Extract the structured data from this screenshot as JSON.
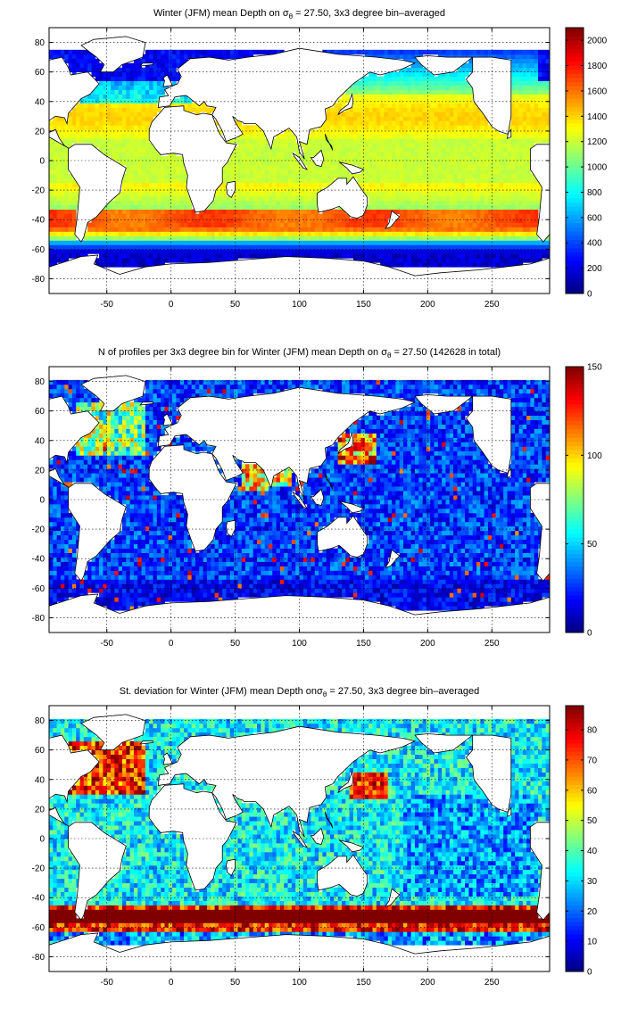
{
  "chart_data": [
    {
      "type": "heatmap",
      "title": "Winter (JFM) mean Depth on σθ = 27.50, 3x3 degree bin–averaged",
      "title_parts": {
        "pre": "Winter (JFM) mean Depth on σ",
        "sub": "θ",
        "post": " = 27.50, 3x3 degree bin–averaged"
      },
      "xlim": [
        -95,
        295
      ],
      "ylim": [
        -90,
        90
      ],
      "xticks": [
        -50,
        0,
        50,
        100,
        150,
        200,
        250
      ],
      "yticks": [
        -80,
        -60,
        -40,
        -20,
        0,
        20,
        40,
        60,
        80
      ],
      "grid": true,
      "bin_deg": 3,
      "colorbar": {
        "min": 0,
        "max": 2100,
        "ticks": [
          0,
          200,
          400,
          600,
          800,
          1000,
          1200,
          1400,
          1600,
          1800,
          2000
        ]
      },
      "field_summary": {
        "tropics": 1200,
        "subtropical_gyres": 1350,
        "southern_band_-40": 1650,
        "antarctic_circumpolar_-60": 150,
        "north_atlantic_subpolar": 400
      }
    },
    {
      "type": "heatmap",
      "title": "N of profiles per 3x3 degree bin for Winter (JFM) mean Depth on σθ = 27.50 (142628 in total)",
      "title_parts": {
        "pre": "N of profiles per 3x3 degree bin for Winter (JFM) mean Depth on σ",
        "sub": "θ",
        "post": " = 27.50 (142628 in total)"
      },
      "total_profiles": 142628,
      "xlim": [
        -95,
        295
      ],
      "ylim": [
        -90,
        90
      ],
      "xticks": [
        -50,
        0,
        50,
        100,
        150,
        200,
        250
      ],
      "yticks": [
        -80,
        -60,
        -40,
        -20,
        0,
        20,
        40,
        60,
        80
      ],
      "grid": true,
      "bin_deg": 3,
      "colorbar": {
        "min": 0,
        "max": 150,
        "ticks": [
          0,
          50,
          100,
          150
        ]
      },
      "field_summary": {
        "open_ocean_typical": 25,
        "kuroshio_region": 140,
        "north_atlantic": 90,
        "arabian_sea": 110
      }
    },
    {
      "type": "heatmap",
      "title": "St. deviation for Winter (JFM) mean Depth onσθ = 27.50, 3x3 degree bin–averaged",
      "title_parts": {
        "pre": "St. deviation for Winter (JFM) mean Depth onσ",
        "sub": "θ",
        "post": " = 27.50, 3x3 degree bin–averaged"
      },
      "xlim": [
        -95,
        295
      ],
      "ylim": [
        -90,
        90
      ],
      "xticks": [
        -50,
        0,
        50,
        100,
        150,
        200,
        250
      ],
      "yticks": [
        -80,
        -60,
        -40,
        -20,
        0,
        20,
        40,
        60,
        80
      ],
      "grid": true,
      "bin_deg": 3,
      "colorbar": {
        "min": 0,
        "max": 88,
        "ticks": [
          0,
          10,
          20,
          30,
          40,
          50,
          60,
          70,
          80
        ]
      },
      "field_summary": {
        "open_ocean_typical": 30,
        "southern_ocean_band": 88,
        "north_atlantic_gulf_stream": 85,
        "kuroshio": 75,
        "south_pacific": 20
      }
    }
  ],
  "palette": "jet"
}
